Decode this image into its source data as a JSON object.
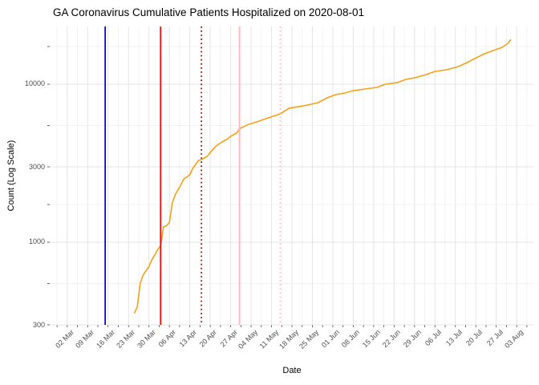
{
  "chart_data": {
    "type": "line",
    "title": "GA Coronavirus Cumulative Patients Hospitalized on 2020-08-01",
    "xlabel": "Date",
    "ylabel": "Count (Log Scale)",
    "grid": "on",
    "legend": "none",
    "x_axis": {
      "domain": [
        "2020-02-25",
        "2020-08-09"
      ],
      "tick_interval_days": 3.5,
      "major_breaks": [
        {
          "date": "2020-03-02",
          "label": "02 Mar"
        },
        {
          "date": "2020-03-09",
          "label": "09 Mar"
        },
        {
          "date": "2020-03-16",
          "label": "16 Mar"
        },
        {
          "date": "2020-03-23",
          "label": "23 Mar"
        },
        {
          "date": "2020-03-30",
          "label": "30 Mar"
        },
        {
          "date": "2020-04-06",
          "label": "06 Apr"
        },
        {
          "date": "2020-04-13",
          "label": "13 Apr"
        },
        {
          "date": "2020-04-20",
          "label": "20 Apr"
        },
        {
          "date": "2020-04-27",
          "label": "27 Apr"
        },
        {
          "date": "2020-05-04",
          "label": "04 May"
        },
        {
          "date": "2020-05-11",
          "label": "11 May"
        },
        {
          "date": "2020-05-18",
          "label": "18 May"
        },
        {
          "date": "2020-05-25",
          "label": "25 May"
        },
        {
          "date": "2020-06-01",
          "label": "01 Jun"
        },
        {
          "date": "2020-06-08",
          "label": "08 Jun"
        },
        {
          "date": "2020-06-15",
          "label": "15 Jun"
        },
        {
          "date": "2020-06-22",
          "label": "22 Jun"
        },
        {
          "date": "2020-06-29",
          "label": "29 Jun"
        },
        {
          "date": "2020-07-06",
          "label": "06 Jul"
        },
        {
          "date": "2020-07-13",
          "label": "13 Jul"
        },
        {
          "date": "2020-07-20",
          "label": "20 Jul"
        },
        {
          "date": "2020-07-27",
          "label": "27 Jul"
        },
        {
          "date": "2020-08-03",
          "label": "03 Aug"
        }
      ]
    },
    "y_axis": {
      "scale": "log10",
      "domain": [
        300,
        23200
      ],
      "major_breaks": [
        {
          "value": 300,
          "label": "300"
        },
        {
          "value": 1000,
          "label": "1000"
        },
        {
          "value": 3000,
          "label": "3000"
        },
        {
          "value": 10000,
          "label": "10000"
        }
      ],
      "minor_breaks": [
        548,
        1732,
        5477,
        17320
      ]
    },
    "annotations": {
      "vlines": [
        {
          "date": "2020-03-15",
          "color": "#0000CD",
          "style": "solid"
        },
        {
          "date": "2020-04-03",
          "color": "#FF0000",
          "style": "solid"
        },
        {
          "date": "2020-04-17",
          "color": "#8B0000",
          "style": "dotted"
        },
        {
          "date": "2020-04-30",
          "color": "#FFB6C1",
          "style": "solid"
        },
        {
          "date": "2020-05-14",
          "color": "#FFB6C1",
          "style": "dotted"
        }
      ]
    },
    "series": [
      {
        "name": "cumulative_patients_hospitalized",
        "color": "#F7A11A",
        "points": [
          [
            "2020-03-25",
            355
          ],
          [
            "2020-03-26",
            390
          ],
          [
            "2020-03-27",
            550
          ],
          [
            "2020-03-28",
            620
          ],
          [
            "2020-03-29",
            660
          ],
          [
            "2020-03-30",
            700
          ],
          [
            "2020-03-31",
            775
          ],
          [
            "2020-04-01",
            830
          ],
          [
            "2020-04-02",
            900
          ],
          [
            "2020-04-03",
            950
          ],
          [
            "2020-04-04",
            1250
          ],
          [
            "2020-04-05",
            1270
          ],
          [
            "2020-04-06",
            1330
          ],
          [
            "2020-04-07",
            1775
          ],
          [
            "2020-04-08",
            2000
          ],
          [
            "2020-04-10",
            2320
          ],
          [
            "2020-04-11",
            2520
          ],
          [
            "2020-04-13",
            2670
          ],
          [
            "2020-04-14",
            2930
          ],
          [
            "2020-04-16",
            3300
          ],
          [
            "2020-04-17",
            3330
          ],
          [
            "2020-04-19",
            3500
          ],
          [
            "2020-04-20",
            3700
          ],
          [
            "2020-04-22",
            4060
          ],
          [
            "2020-04-24",
            4310
          ],
          [
            "2020-04-26",
            4520
          ],
          [
            "2020-04-27",
            4680
          ],
          [
            "2020-04-29",
            4900
          ],
          [
            "2020-04-30",
            5215
          ],
          [
            "2020-05-03",
            5570
          ],
          [
            "2020-05-05",
            5700
          ],
          [
            "2020-05-09",
            6050
          ],
          [
            "2020-05-13",
            6400
          ],
          [
            "2020-05-14",
            6500
          ],
          [
            "2020-05-17",
            7050
          ],
          [
            "2020-05-22",
            7300
          ],
          [
            "2020-05-27",
            7640
          ],
          [
            "2020-05-30",
            8200
          ],
          [
            "2020-06-02",
            8590
          ],
          [
            "2020-06-05",
            8790
          ],
          [
            "2020-06-08",
            9100
          ],
          [
            "2020-06-12",
            9320
          ],
          [
            "2020-06-16",
            9540
          ],
          [
            "2020-06-19",
            10000
          ],
          [
            "2020-06-23",
            10230
          ],
          [
            "2020-06-26",
            10730
          ],
          [
            "2020-06-29",
            10980
          ],
          [
            "2020-07-03",
            11510
          ],
          [
            "2020-07-06",
            12060
          ],
          [
            "2020-07-10",
            12340
          ],
          [
            "2020-07-14",
            12930
          ],
          [
            "2020-07-17",
            13710
          ],
          [
            "2020-07-19",
            14350
          ],
          [
            "2020-07-23",
            15600
          ],
          [
            "2020-07-26",
            16340
          ],
          [
            "2020-07-29",
            17120
          ],
          [
            "2020-07-31",
            18150
          ],
          [
            "2020-08-01",
            19170
          ]
        ]
      }
    ]
  },
  "colors": {
    "background": "#FFFFFF",
    "grid_major": "#E4E4E4",
    "grid_minor": "#EFEFEF",
    "tick_mark": "#404040",
    "tick_text": "#4D4D4D",
    "title_text": "#000000"
  }
}
